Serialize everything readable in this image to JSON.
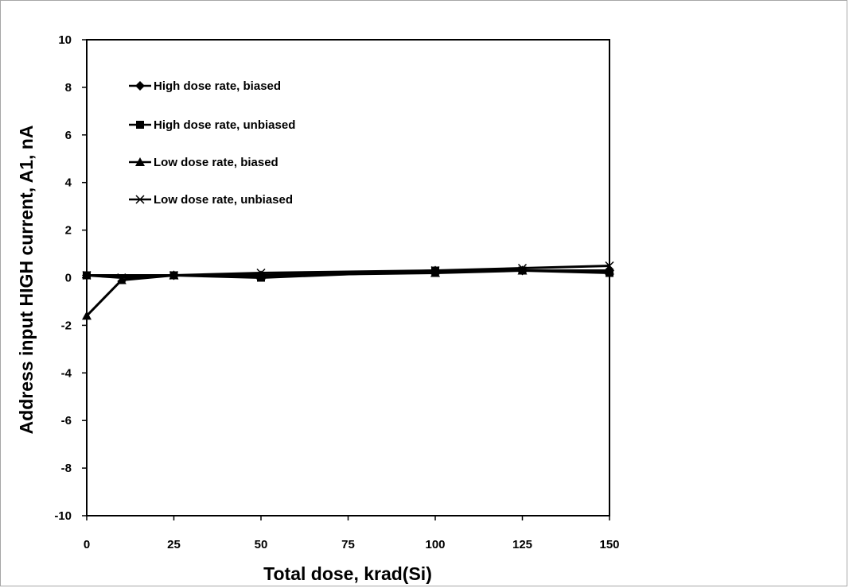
{
  "chart_data": {
    "type": "line",
    "title": "",
    "xlabel": "Total dose, krad(Si)",
    "ylabel": "Address input HIGH current, A1, nA",
    "xlim": [
      0,
      150
    ],
    "ylim": [
      -10,
      10
    ],
    "x_ticks": [
      0,
      25,
      50,
      75,
      100,
      125,
      150
    ],
    "y_ticks": [
      10,
      8,
      6,
      4,
      2,
      0,
      -2,
      -4,
      -6,
      -8,
      -10
    ],
    "grid": false,
    "legend_position": "top-left inside plot",
    "series": [
      {
        "name": "High dose rate, biased",
        "marker": "diamond",
        "x": [
          0,
          25,
          50,
          100,
          125,
          150
        ],
        "y": [
          0.1,
          0.1,
          0.1,
          0.3,
          0.3,
          0.3
        ]
      },
      {
        "name": "High dose rate, unbiased",
        "marker": "square",
        "x": [
          0,
          25,
          50,
          100,
          125,
          150
        ],
        "y": [
          0.1,
          0.1,
          0.0,
          0.3,
          0.3,
          0.2
        ]
      },
      {
        "name": "Low dose rate, biased",
        "marker": "triangle",
        "x": [
          0,
          10,
          25,
          50,
          100,
          125,
          150
        ],
        "y": [
          -1.6,
          -0.1,
          0.1,
          0.1,
          0.2,
          0.3,
          0.3
        ]
      },
      {
        "name": "Low dose rate, unbiased",
        "marker": "x",
        "x": [
          0,
          10,
          25,
          50,
          100,
          125,
          150
        ],
        "y": [
          0.1,
          0.0,
          0.1,
          0.2,
          0.3,
          0.4,
          0.5
        ]
      }
    ]
  }
}
